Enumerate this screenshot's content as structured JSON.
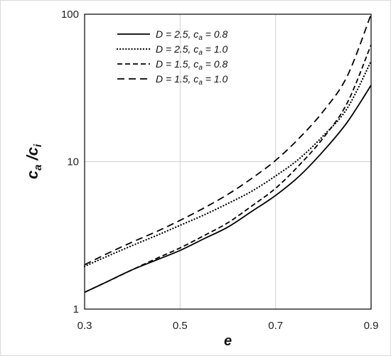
{
  "chart_data": {
    "type": "line",
    "xlabel": "e",
    "ylabel": "ca/ci",
    "ylabel_parts": {
      "main1": "c",
      "sub1": "a",
      "slash": " /",
      "main2": "c",
      "sub2": "i"
    },
    "xlim": [
      0.3,
      0.9
    ],
    "ylim": [
      1,
      100
    ],
    "yscale": "log",
    "grid": true,
    "legend_position": "top-left",
    "x_ticks": [
      "0.3",
      "0.5",
      "0.7",
      "0.9"
    ],
    "y_ticks": [
      "1",
      "10",
      "100"
    ],
    "x": [
      0.3,
      0.35,
      0.4,
      0.45,
      0.5,
      0.55,
      0.6,
      0.65,
      0.7,
      0.75,
      0.8,
      0.85,
      0.9
    ],
    "series": [
      {
        "name": "D = 2.5, ca = 0.8",
        "legend": {
          "pre": "D = 2.5, c",
          "sub": "a",
          "post": " = 0.8"
        },
        "style": "solid",
        "values": [
          1.3,
          1.55,
          1.85,
          2.15,
          2.5,
          3.0,
          3.6,
          4.6,
          5.9,
          8.0,
          11.8,
          18.5,
          33
        ]
      },
      {
        "name": "D = 2.5, ca = 1.0",
        "legend": {
          "pre": "D = 2.5, c",
          "sub": "a",
          "post": " = 1.0"
        },
        "style": "dotted",
        "values": [
          1.95,
          2.3,
          2.7,
          3.15,
          3.7,
          4.35,
          5.2,
          6.3,
          8.0,
          10.5,
          15.0,
          23.0,
          48
        ]
      },
      {
        "name": "D = 1.5, ca = 0.8",
        "legend": {
          "pre": "D = 1.5, c",
          "sub": "a",
          "post": " = 0.8"
        },
        "style": "dashed-short",
        "values": [
          1.3,
          1.55,
          1.85,
          2.2,
          2.6,
          3.15,
          3.85,
          5.0,
          6.6,
          9.5,
          14.5,
          25.0,
          62
        ]
      },
      {
        "name": "D = 1.5, ca = 1.0",
        "legend": {
          "pre": "D = 1.5, c",
          "sub": "a",
          "post": " = 1.0"
        },
        "style": "dashed-long",
        "values": [
          2.0,
          2.4,
          2.85,
          3.35,
          4.0,
          4.85,
          6.0,
          7.7,
          10.2,
          14.5,
          22.0,
          38.0,
          100
        ]
      }
    ]
  }
}
